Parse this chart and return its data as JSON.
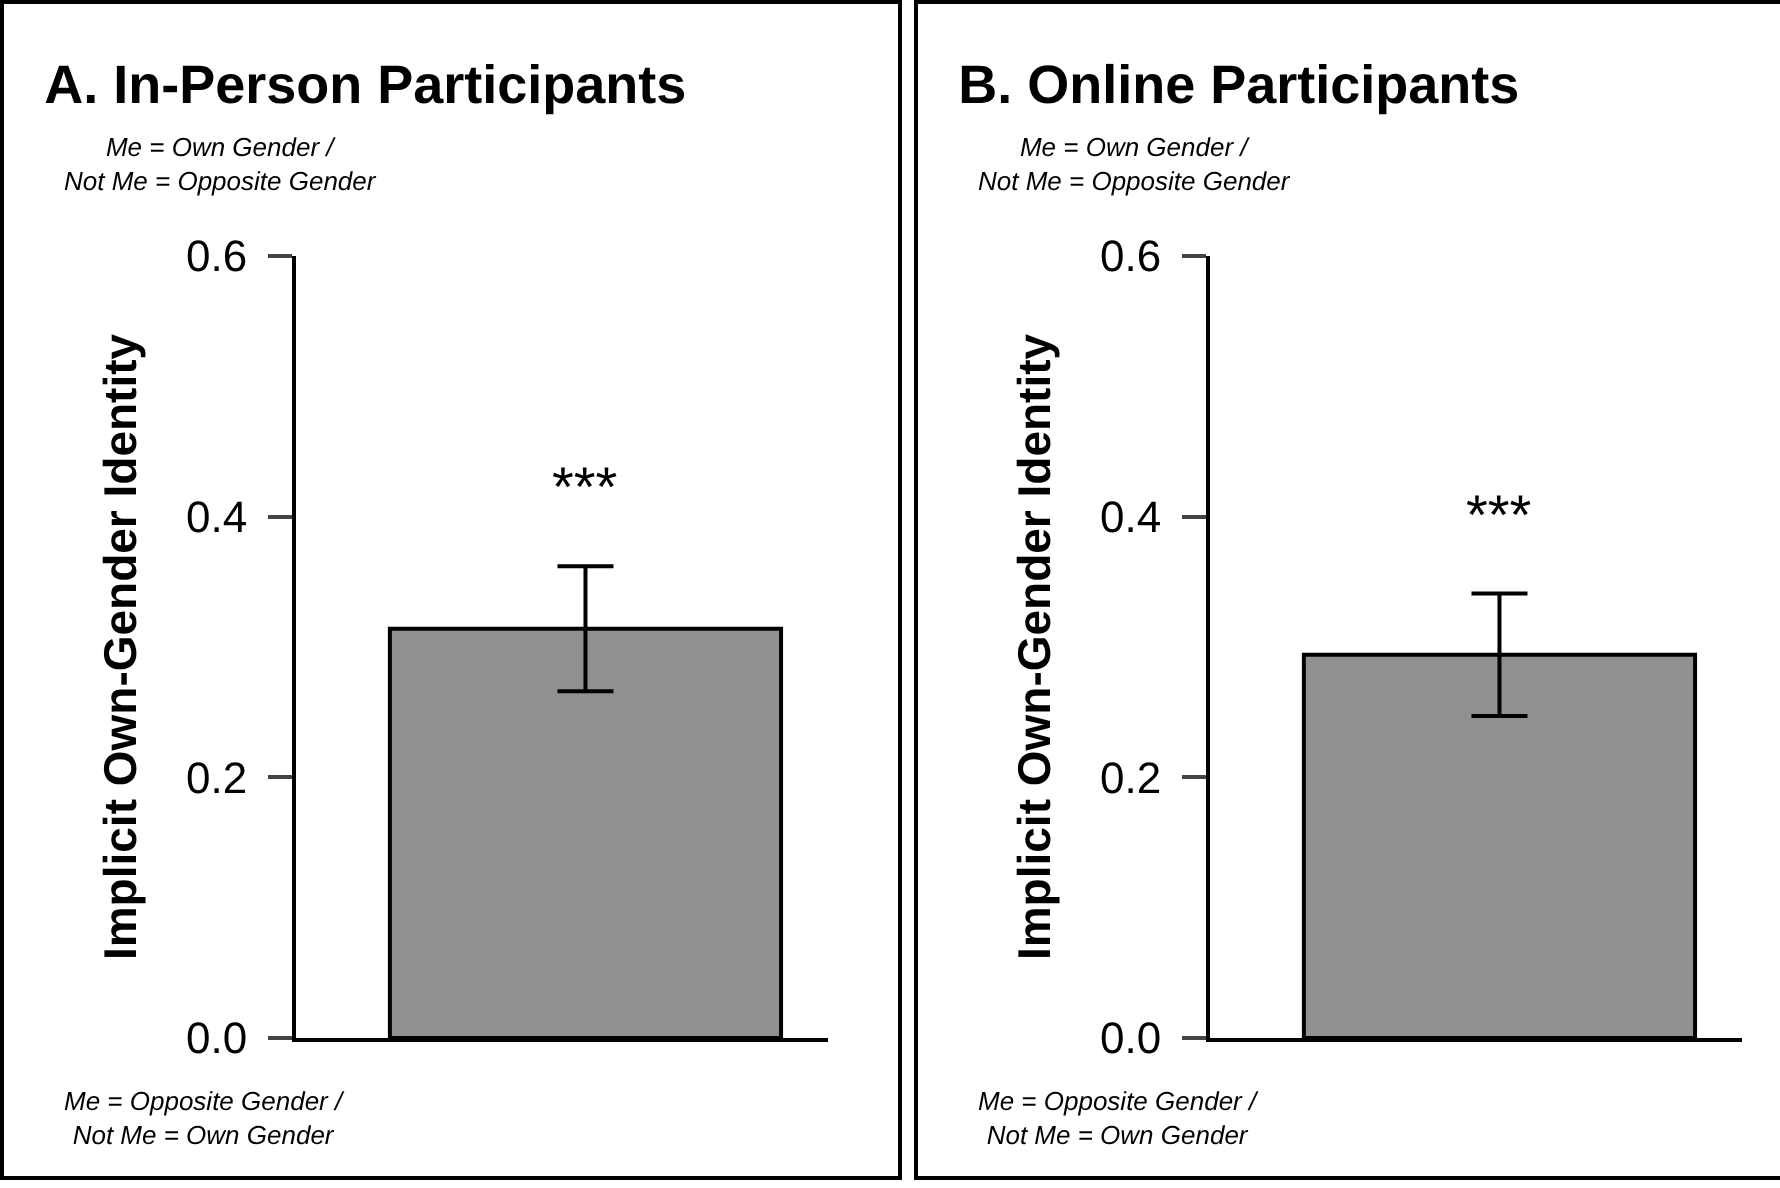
{
  "chart_data": [
    {
      "type": "bar",
      "title": "A. In-Person Participants",
      "ylabel": "Implicit Own-Gender Identity",
      "categories": [
        null
      ],
      "values": [
        0.314
      ],
      "errors": [
        0.048
      ],
      "color": "#909090",
      "ylim": [
        0,
        0.6
      ],
      "yticks": [
        {
          "value": 0,
          "label": "0.0"
        },
        0.2,
        0.4,
        0.6
      ],
      "tick_labels": "y",
      "grid": false,
      "annotations": [
        "Me = Own Gender /\nNot Me = Opposite Gender",
        "Me = Opposite Gender /\nNot Me = Own Gender",
        "***"
      ]
    },
    {
      "type": "bar",
      "title": "B. Online Participants",
      "ylabel": "Implicit Own-Gender Identity",
      "categories": [
        null
      ],
      "values": [
        0.294
      ],
      "errors": [
        0.047
      ],
      "color": "#909090",
      "ylim": [
        0,
        0.6
      ],
      "yticks": [
        {
          "value": 0,
          "label": "0.0"
        },
        0.2,
        0.4,
        0.6
      ],
      "tick_labels": "y",
      "grid": false,
      "annotations": [
        "Me = Own Gender /\nNot Me = Opposite Gender",
        "Me = Opposite Gender /\nNot Me = Own Gender",
        "***"
      ]
    }
  ]
}
